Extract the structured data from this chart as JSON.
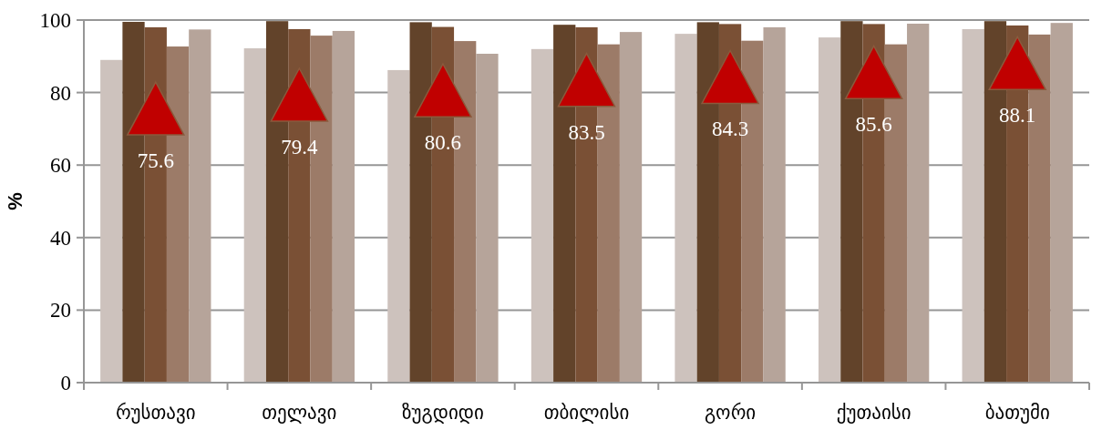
{
  "chart_data": {
    "type": "bar",
    "ylabel": "%",
    "categories": [
      "რუსთავი",
      "თელავი",
      "ზუგდიდი",
      "თბილისი",
      "გორი",
      "ქუთაისი",
      "ბათუმი"
    ],
    "series": [
      {
        "color": "#cdc2bd",
        "values": [
          89.0,
          92.2,
          86.2,
          92.0,
          96.2,
          95.2,
          97.5
        ]
      },
      {
        "color": "#62432a",
        "values": [
          99.5,
          99.7,
          99.4,
          98.7,
          99.4,
          99.7,
          99.7
        ]
      },
      {
        "color": "#7a5035",
        "values": [
          98.0,
          97.5,
          98.1,
          98.0,
          98.9,
          98.9,
          98.5
        ]
      },
      {
        "color": "#9c7b68",
        "values": [
          92.7,
          95.7,
          94.2,
          93.3,
          94.3,
          93.3,
          96.0
        ]
      },
      {
        "color": "#b6a49a",
        "values": [
          97.4,
          97.0,
          90.7,
          96.7,
          98.0,
          99.0,
          99.2
        ]
      },
      {
        "type": "scatter",
        "color": "#c00000",
        "marker": "triangle",
        "x": [
          "რუსთავი",
          "თელავი",
          "ზუგდიდი",
          "თბილისი",
          "გორი",
          "ქუთაისი",
          "ბათუმი"
        ],
        "values": [
          75.6,
          79.4,
          80.6,
          83.5,
          84.3,
          85.6,
          88.1
        ],
        "value_labels": [
          "75.6",
          "79.4",
          "80.6",
          "83.5",
          "84.3",
          "85.6",
          "88.1"
        ]
      }
    ],
    "ylim": [
      0,
      100
    ],
    "yticks": [
      0,
      20,
      40,
      60,
      80,
      100
    ],
    "grid": "y"
  }
}
